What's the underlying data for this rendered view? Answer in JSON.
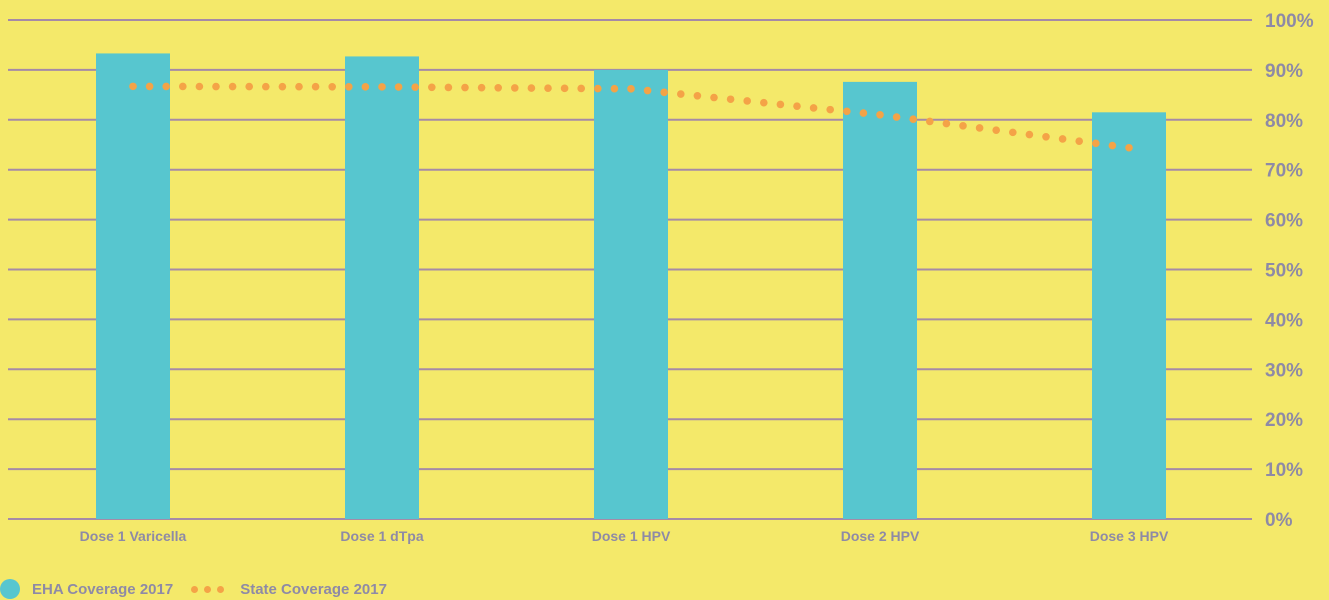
{
  "colors": {
    "background": "#f4e96a",
    "bar": "#57c6cf",
    "line": "#f4a347",
    "grid": "#a58aa7",
    "text": "#8e8aa6"
  },
  "chart_data": {
    "type": "bar",
    "categories": [
      "Dose 1 Varicella",
      "Dose 1 dTpa",
      "Dose 1 HPV",
      "Dose 2 HPV",
      "Dose 3 HPV"
    ],
    "series": [
      {
        "name": "EHA Coverage 2017",
        "type": "bar",
        "values": [
          93.3,
          92.7,
          90.0,
          87.6,
          81.5
        ]
      },
      {
        "name": "State Coverage 2017",
        "type": "line",
        "style": "dotted",
        "values": [
          86.7,
          86.6,
          86.2,
          81.0,
          74.4
        ]
      }
    ],
    "y_ticks": [
      "0%",
      "10%",
      "20%",
      "30%",
      "40%",
      "50%",
      "60%",
      "70%",
      "80%",
      "90%",
      "100%"
    ],
    "ylim": [
      0,
      100
    ],
    "y_axis_side": "right",
    "grid": true,
    "legend_position": "bottom-left",
    "title": "",
    "xlabel": "",
    "ylabel": ""
  }
}
